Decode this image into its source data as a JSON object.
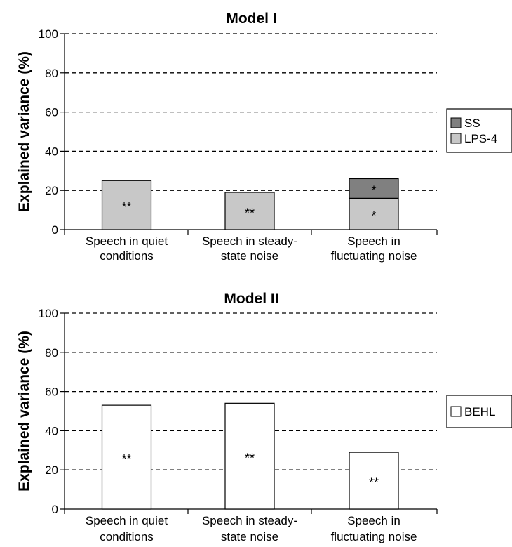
{
  "colors": {
    "SS": "#808080",
    "LPS-4": "#c8c8c8",
    "BEHL": "#ffffff",
    "axis": "#000000",
    "grid": "#000000"
  },
  "chart_data": [
    {
      "type": "bar",
      "stacked": true,
      "title": "Model I",
      "ylabel": "Explained variance (%)",
      "xlabel": "",
      "ylim": [
        0,
        100
      ],
      "yticks": [
        0,
        20,
        40,
        60,
        80,
        100
      ],
      "grid": "dashed horizontal",
      "legend_position": "right",
      "categories": [
        "Speech in quiet conditions",
        "Speech in steady-state noise",
        "Speech in fluctuating noise"
      ],
      "category_lines": [
        [
          "Speech in quiet",
          "conditions"
        ],
        [
          "Speech in steady-",
          "state noise"
        ],
        [
          "Speech in",
          "fluctuating noise"
        ]
      ],
      "series": [
        {
          "name": "LPS-4",
          "values": [
            25,
            19,
            16
          ],
          "annotations": [
            "**",
            "**",
            "*"
          ]
        },
        {
          "name": "SS",
          "values": [
            0,
            0,
            10
          ],
          "annotations": [
            "",
            "",
            "*"
          ]
        }
      ],
      "legend": [
        "SS",
        "LPS-4"
      ]
    },
    {
      "type": "bar",
      "stacked": false,
      "title": "Model II",
      "ylabel": "Explained variance (%)",
      "xlabel": "",
      "ylim": [
        0,
        100
      ],
      "yticks": [
        0,
        20,
        40,
        60,
        80,
        100
      ],
      "grid": "dashed horizontal",
      "legend_position": "right",
      "categories": [
        "Speech in quiet conditions",
        "Speech in steady-state noise",
        "Speech in fluctuating noise"
      ],
      "category_lines": [
        [
          "Speech in quiet",
          "conditions"
        ],
        [
          "Speech in steady-",
          "state noise"
        ],
        [
          "Speech in",
          "fluctuating noise"
        ]
      ],
      "series": [
        {
          "name": "BEHL",
          "values": [
            53,
            54,
            29
          ],
          "annotations": [
            "**",
            "**",
            "**"
          ]
        }
      ],
      "legend": [
        "BEHL"
      ]
    }
  ]
}
